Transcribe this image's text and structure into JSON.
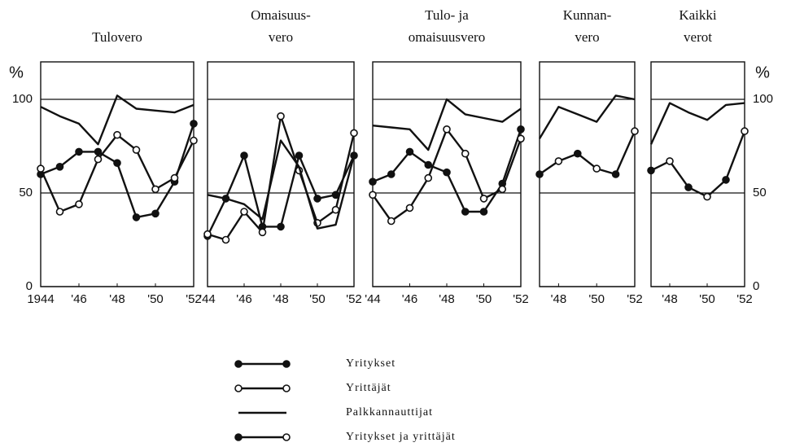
{
  "chart_data": [
    {
      "type": "line",
      "title": [
        "Tulovero"
      ],
      "ylabel": "%",
      "ytick_side": "left",
      "xlim": [
        1944,
        1952
      ],
      "ylim": [
        0,
        120
      ],
      "yticks": [
        0,
        50,
        100
      ],
      "xticks": [
        1944,
        {
          "value": 1946,
          "label": "'46"
        },
        {
          "value": 1948,
          "label": "'48"
        },
        {
          "value": 1950,
          "label": "'50"
        },
        {
          "value": 1952,
          "label": "'52"
        }
      ],
      "x": [
        1944,
        1945,
        1946,
        1947,
        1948,
        1949,
        1950,
        1951,
        1952
      ],
      "series": [
        {
          "marker": "filled",
          "color": "#111",
          "values": [
            60,
            64,
            72,
            72,
            66,
            37,
            39,
            56,
            87
          ]
        },
        {
          "marker": "open",
          "color": "#111",
          "values": [
            63,
            40,
            44,
            68,
            81,
            73,
            52,
            58,
            78
          ]
        },
        {
          "marker": "none",
          "color": "#111",
          "values": [
            96,
            91,
            87,
            76,
            102,
            95,
            94,
            93,
            97
          ]
        }
      ]
    },
    {
      "type": "line",
      "title": [
        "Omaisuus-",
        "vero"
      ],
      "xlim": [
        1944,
        1952
      ],
      "ylim": [
        0,
        120
      ],
      "yticks": [
        0,
        50,
        100
      ],
      "xticks": [
        {
          "value": 1944,
          "label": "'44"
        },
        {
          "value": 1946,
          "label": "'46"
        },
        {
          "value": 1948,
          "label": "'48"
        },
        {
          "value": 1950,
          "label": "'50"
        },
        {
          "value": 1952,
          "label": "'52"
        }
      ],
      "x": [
        1944,
        1945,
        1946,
        1947,
        1948,
        1949,
        1950,
        1951,
        1952
      ],
      "series": [
        {
          "marker": "filled",
          "color": "#111",
          "values": [
            27,
            47,
            70,
            32,
            32,
            70,
            47,
            49,
            70
          ]
        },
        {
          "marker": "open",
          "color": "#111",
          "values": [
            28,
            25,
            40,
            29,
            91,
            62,
            34,
            41,
            82
          ]
        },
        {
          "marker": "none",
          "color": "#111",
          "values": [
            49,
            47,
            44,
            36,
            78,
            64,
            31,
            33,
            70
          ]
        }
      ]
    },
    {
      "type": "line",
      "title": [
        "Tulo- ja",
        "omaisuusvero"
      ],
      "xlim": [
        1944,
        1952
      ],
      "ylim": [
        0,
        120
      ],
      "yticks": [
        0,
        50,
        100
      ],
      "xticks": [
        {
          "value": 1944,
          "label": "'44"
        },
        {
          "value": 1946,
          "label": "'46"
        },
        {
          "value": 1948,
          "label": "'48"
        },
        {
          "value": 1950,
          "label": "'50"
        },
        {
          "value": 1952,
          "label": "'52"
        }
      ],
      "x": [
        1944,
        1945,
        1946,
        1947,
        1948,
        1949,
        1950,
        1951,
        1952
      ],
      "series": [
        {
          "marker": "filled",
          "color": "#111",
          "values": [
            56,
            60,
            72,
            65,
            61,
            40,
            40,
            55,
            84
          ]
        },
        {
          "marker": "open",
          "color": "#111",
          "values": [
            49,
            35,
            42,
            58,
            84,
            71,
            47,
            52,
            79
          ]
        },
        {
          "marker": "none",
          "color": "#111",
          "values": [
            86,
            85,
            84,
            73,
            100,
            92,
            90,
            88,
            95
          ]
        }
      ]
    },
    {
      "type": "line",
      "title": [
        "Kunnan-",
        "vero"
      ],
      "xlim": [
        1947,
        1952
      ],
      "ylim": [
        0,
        120
      ],
      "yticks": [
        0,
        50,
        100
      ],
      "xticks": [
        {
          "value": 1948,
          "label": "'48"
        },
        {
          "value": 1950,
          "label": "'50"
        },
        {
          "value": 1952,
          "label": "'52"
        }
      ],
      "x": [
        1947,
        1948,
        1949,
        1950,
        1951,
        1952
      ],
      "series": [
        {
          "marker": "alternate",
          "color": "#111",
          "values": [
            60,
            67,
            71,
            63,
            60,
            83
          ]
        },
        {
          "marker": "none",
          "color": "#111",
          "values": [
            79,
            96,
            92,
            88,
            102,
            100
          ]
        }
      ]
    },
    {
      "type": "line",
      "title": [
        "Kaikki",
        "verot"
      ],
      "ylabel": "%",
      "ytick_side": "right",
      "xlim": [
        1947,
        1952
      ],
      "ylim": [
        0,
        120
      ],
      "yticks": [
        0,
        50,
        100
      ],
      "xticks": [
        {
          "value": 1948,
          "label": "'48"
        },
        {
          "value": 1950,
          "label": "'50"
        },
        {
          "value": 1952,
          "label": "'52"
        }
      ],
      "x": [
        1947,
        1948,
        1949,
        1950,
        1951,
        1952
      ],
      "series": [
        {
          "marker": "alternate",
          "color": "#111",
          "values": [
            62,
            67,
            53,
            48,
            57,
            83
          ]
        },
        {
          "marker": "none",
          "color": "#111",
          "values": [
            76,
            98,
            93,
            89,
            97,
            98
          ]
        }
      ]
    }
  ],
  "legend": [
    {
      "name": "Yritykset",
      "marker": "filled"
    },
    {
      "name": "Yrittäjät",
      "marker": "open"
    },
    {
      "name": "Palkkannauttijat",
      "marker": "none"
    },
    {
      "name": "Yritykset ja yrittäjät",
      "marker": "alternate"
    }
  ]
}
